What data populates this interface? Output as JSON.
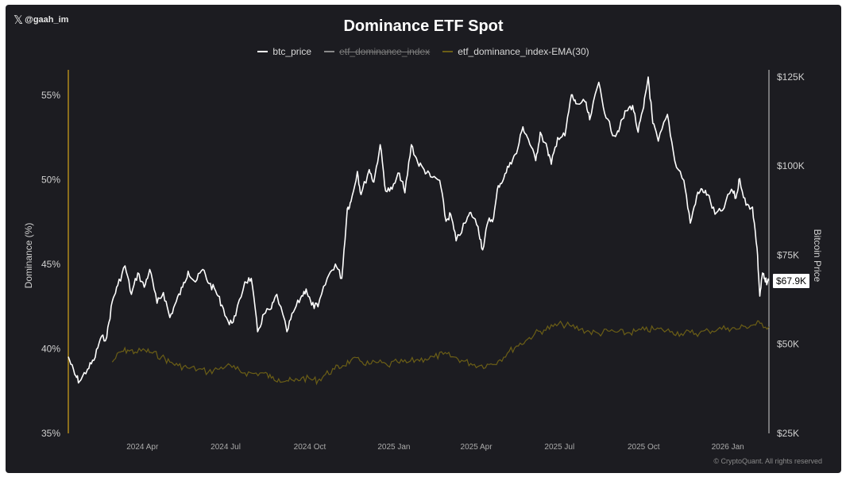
{
  "header": {
    "attribution": "@gaah_im",
    "attribution_icon": "x-logo-icon"
  },
  "chart_data": {
    "type": "line",
    "title": "Dominance ETF Spot",
    "legend": {
      "placement": "top-center",
      "entries": [
        {
          "label": "btc_price",
          "color": "#ffffff",
          "hidden": false
        },
        {
          "label": "etf_dominance_index",
          "color": "#8a8a8a",
          "hidden": true
        },
        {
          "label": "etf_dominance_index-EMA(30)",
          "color": "#6b5e16",
          "hidden": false
        }
      ]
    },
    "x_axis": {
      "ticks": [
        "2024 Apr",
        "2024 Jul",
        "2024 Oct",
        "2025 Jan",
        "2025 Apr",
        "2025 Jul",
        "2025 Oct",
        "2026 Jan"
      ],
      "range": [
        "2024-01-11",
        "2026-02-15"
      ]
    },
    "y_left": {
      "label": "Dominance (%)",
      "ticks": [
        "35%",
        "40%",
        "45%",
        "50%",
        "55%"
      ],
      "range": [
        35,
        56.5
      ]
    },
    "y_right": {
      "label": "Bitcoin Price",
      "ticks": [
        "$25K",
        "$50K",
        "$75K",
        "$100K",
        "$125K"
      ],
      "range": [
        25000,
        127000
      ]
    },
    "current_price_label": "$67.9K",
    "grid": false,
    "series": [
      {
        "name": "btc_price",
        "axis": "right",
        "color": "#ffffff",
        "points": [
          [
            "2024-01-11",
            46500
          ],
          [
            "2024-01-18",
            41500
          ],
          [
            "2024-01-23",
            39500
          ],
          [
            "2024-02-01",
            43000
          ],
          [
            "2024-02-08",
            45500
          ],
          [
            "2024-02-15",
            51500
          ],
          [
            "2024-02-22",
            52000
          ],
          [
            "2024-02-28",
            62000
          ],
          [
            "2024-03-05",
            66500
          ],
          [
            "2024-03-13",
            72000
          ],
          [
            "2024-03-20",
            64000
          ],
          [
            "2024-03-27",
            70000
          ],
          [
            "2024-04-03",
            66000
          ],
          [
            "2024-04-09",
            71000
          ],
          [
            "2024-04-17",
            61500
          ],
          [
            "2024-04-24",
            64500
          ],
          [
            "2024-05-01",
            57500
          ],
          [
            "2024-05-08",
            62000
          ],
          [
            "2024-05-15",
            66000
          ],
          [
            "2024-05-21",
            70500
          ],
          [
            "2024-05-29",
            67500
          ],
          [
            "2024-06-06",
            71000
          ],
          [
            "2024-06-13",
            67000
          ],
          [
            "2024-06-20",
            65000
          ],
          [
            "2024-06-27",
            61000
          ],
          [
            "2024-07-05",
            55500
          ],
          [
            "2024-07-12",
            58000
          ],
          [
            "2024-07-22",
            67500
          ],
          [
            "2024-07-29",
            68500
          ],
          [
            "2024-08-05",
            53500
          ],
          [
            "2024-08-12",
            58500
          ],
          [
            "2024-08-20",
            60000
          ],
          [
            "2024-08-26",
            64000
          ],
          [
            "2024-09-06",
            53500
          ],
          [
            "2024-09-13",
            59000
          ],
          [
            "2024-09-21",
            63000
          ],
          [
            "2024-09-27",
            65500
          ],
          [
            "2024-10-03",
            61000
          ],
          [
            "2024-10-10",
            60500
          ],
          [
            "2024-10-20",
            68500
          ],
          [
            "2024-10-29",
            72500
          ],
          [
            "2024-11-05",
            68500
          ],
          [
            "2024-11-11",
            88000
          ],
          [
            "2024-11-15",
            90000
          ],
          [
            "2024-11-22",
            98500
          ],
          [
            "2024-11-26",
            92000
          ],
          [
            "2024-12-05",
            99000
          ],
          [
            "2024-12-10",
            95500
          ],
          [
            "2024-12-17",
            106000
          ],
          [
            "2024-12-23",
            93000
          ],
          [
            "2024-12-30",
            93500
          ],
          [
            "2025-01-07",
            98000
          ],
          [
            "2025-01-13",
            92500
          ],
          [
            "2025-01-20",
            106000
          ],
          [
            "2025-01-27",
            101000
          ],
          [
            "2025-02-03",
            99000
          ],
          [
            "2025-02-10",
            97000
          ],
          [
            "2025-02-20",
            96000
          ],
          [
            "2025-02-27",
            84500
          ],
          [
            "2025-03-04",
            86500
          ],
          [
            "2025-03-10",
            79000
          ],
          [
            "2025-03-20",
            84000
          ],
          [
            "2025-03-26",
            87000
          ],
          [
            "2025-04-03",
            83000
          ],
          [
            "2025-04-08",
            76500
          ],
          [
            "2025-04-14",
            84500
          ],
          [
            "2025-04-20",
            85500
          ],
          [
            "2025-04-25",
            94500
          ],
          [
            "2025-05-01",
            96500
          ],
          [
            "2025-05-08",
            101000
          ],
          [
            "2025-05-15",
            103500
          ],
          [
            "2025-05-22",
            111000
          ],
          [
            "2025-05-28",
            107500
          ],
          [
            "2025-06-05",
            101500
          ],
          [
            "2025-06-10",
            109500
          ],
          [
            "2025-06-18",
            104500
          ],
          [
            "2025-06-22",
            100500
          ],
          [
            "2025-06-29",
            108000
          ],
          [
            "2025-07-07",
            108500
          ],
          [
            "2025-07-14",
            120000
          ],
          [
            "2025-07-19",
            117500
          ],
          [
            "2025-07-29",
            118000
          ],
          [
            "2025-08-03",
            113000
          ],
          [
            "2025-08-13",
            123500
          ],
          [
            "2025-08-21",
            113500
          ],
          [
            "2025-08-30",
            108500
          ],
          [
            "2025-09-05",
            111000
          ],
          [
            "2025-09-12",
            115500
          ],
          [
            "2025-09-19",
            117000
          ],
          [
            "2025-09-25",
            109500
          ],
          [
            "2025-10-01",
            116500
          ],
          [
            "2025-10-06",
            125000
          ],
          [
            "2025-10-11",
            112000
          ],
          [
            "2025-10-17",
            107000
          ],
          [
            "2025-10-27",
            114500
          ],
          [
            "2025-11-04",
            101500
          ],
          [
            "2025-11-14",
            96000
          ],
          [
            "2025-11-21",
            84000
          ],
          [
            "2025-11-28",
            91500
          ],
          [
            "2025-12-04",
            93500
          ],
          [
            "2025-12-10",
            92000
          ],
          [
            "2025-12-18",
            86500
          ],
          [
            "2025-12-26",
            87500
          ],
          [
            "2026-01-05",
            93500
          ],
          [
            "2026-01-10",
            91000
          ],
          [
            "2026-01-14",
            96500
          ],
          [
            "2026-01-21",
            89000
          ],
          [
            "2026-01-28",
            88500
          ],
          [
            "2026-02-02",
            77000
          ],
          [
            "2026-02-05",
            63500
          ],
          [
            "2026-02-08",
            70000
          ],
          [
            "2026-02-11",
            67500
          ],
          [
            "2026-02-15",
            67900
          ]
        ]
      },
      {
        "name": "etf_dominance_index-EMA(30)",
        "axis": "left",
        "color": "#6b5e16",
        "points": [
          [
            "2024-02-28",
            45000
          ],
          [
            "2024-03-08",
            47800
          ],
          [
            "2024-03-16",
            48400
          ],
          [
            "2024-03-24",
            47800
          ],
          [
            "2024-04-04",
            48300
          ],
          [
            "2024-04-12",
            47500
          ],
          [
            "2024-04-22",
            46500
          ],
          [
            "2024-05-01",
            45000
          ],
          [
            "2024-05-10",
            44000
          ],
          [
            "2024-05-20",
            43400
          ],
          [
            "2024-06-01",
            43000
          ],
          [
            "2024-06-12",
            42200
          ],
          [
            "2024-06-22",
            43000
          ],
          [
            "2024-07-02",
            44000
          ],
          [
            "2024-07-12",
            43000
          ],
          [
            "2024-07-22",
            42000
          ],
          [
            "2024-08-01",
            41800
          ],
          [
            "2024-08-12",
            41900
          ],
          [
            "2024-08-20",
            40500
          ],
          [
            "2024-08-28",
            40300
          ],
          [
            "2024-09-06",
            39800
          ],
          [
            "2024-09-14",
            39600
          ],
          [
            "2024-09-22",
            40500
          ],
          [
            "2024-10-02",
            40200
          ],
          [
            "2024-10-10",
            39800
          ],
          [
            "2024-10-18",
            41500
          ],
          [
            "2024-10-28",
            43000
          ],
          [
            "2024-11-06",
            44000
          ],
          [
            "2024-11-15",
            45500
          ],
          [
            "2024-11-25",
            45300
          ],
          [
            "2024-12-05",
            44400
          ],
          [
            "2024-12-15",
            44900
          ],
          [
            "2024-12-25",
            44000
          ],
          [
            "2025-01-05",
            45000
          ],
          [
            "2025-01-15",
            44800
          ],
          [
            "2025-01-25",
            45600
          ],
          [
            "2025-02-04",
            45900
          ],
          [
            "2025-02-14",
            46400
          ],
          [
            "2025-02-24",
            47200
          ],
          [
            "2025-03-06",
            46500
          ],
          [
            "2025-03-16",
            45500
          ],
          [
            "2025-03-26",
            44600
          ],
          [
            "2025-04-05",
            44000
          ],
          [
            "2025-04-15",
            44300
          ],
          [
            "2025-04-25",
            45300
          ],
          [
            "2025-05-05",
            47500
          ],
          [
            "2025-05-15",
            49500
          ],
          [
            "2025-05-25",
            51000
          ],
          [
            "2025-06-04",
            53000
          ],
          [
            "2025-06-14",
            54000
          ],
          [
            "2025-06-24",
            55000
          ],
          [
            "2025-07-04",
            55600
          ],
          [
            "2025-07-14",
            55000
          ],
          [
            "2025-07-24",
            54200
          ],
          [
            "2025-08-03",
            53500
          ],
          [
            "2025-08-13",
            53000
          ],
          [
            "2025-08-23",
            53700
          ],
          [
            "2025-09-02",
            53400
          ],
          [
            "2025-09-12",
            53100
          ],
          [
            "2025-09-22",
            53600
          ],
          [
            "2025-10-02",
            54000
          ],
          [
            "2025-10-12",
            54200
          ],
          [
            "2025-10-22",
            54000
          ],
          [
            "2025-11-01",
            53600
          ],
          [
            "2025-11-11",
            53000
          ],
          [
            "2025-11-21",
            53300
          ],
          [
            "2025-12-01",
            53100
          ],
          [
            "2025-12-11",
            53800
          ],
          [
            "2025-12-21",
            54200
          ],
          [
            "2026-01-01",
            54600
          ],
          [
            "2026-01-10",
            54200
          ],
          [
            "2026-01-20",
            55000
          ],
          [
            "2026-01-30",
            55500
          ],
          [
            "2026-02-05",
            55900
          ],
          [
            "2026-02-15",
            54900
          ]
        ]
      }
    ]
  },
  "footer": {
    "copyright": "© CryptoQuant. All rights reserved"
  }
}
